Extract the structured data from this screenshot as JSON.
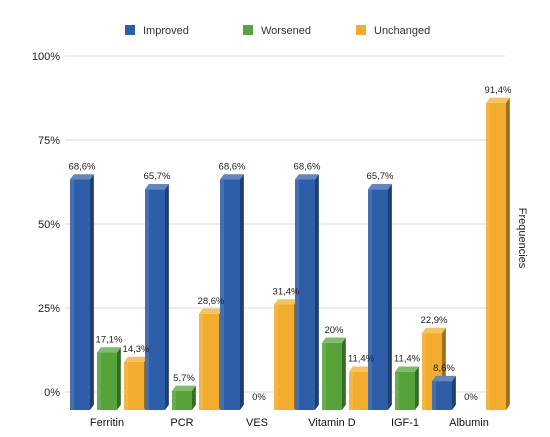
{
  "chart_data": {
    "type": "bar",
    "title": "",
    "xlabel": "",
    "ylabel": "Frequencies",
    "ylim": [
      0,
      100
    ],
    "yticks": [
      "0%",
      "25%",
      "50%",
      "75%",
      "100%"
    ],
    "ytick_values": [
      0,
      25,
      50,
      75,
      100
    ],
    "grid": true,
    "legend_position": "top",
    "categories": [
      "Ferritin",
      "PCR",
      "VES",
      "Vitamin D",
      "IGF-1",
      "Albumin"
    ],
    "series": [
      {
        "name": "Improved",
        "color": "#2f5ea8",
        "values": [
          68.6,
          65.7,
          68.6,
          68.6,
          65.7,
          8.6
        ],
        "labels": [
          "68,6%",
          "65,7%",
          "68,6%",
          "68,6%",
          "65,7%",
          "8,6%"
        ]
      },
      {
        "name": "Worsened",
        "color": "#55a33a",
        "values": [
          17.1,
          5.7,
          0,
          20,
          11.4,
          0
        ],
        "labels": [
          "17,1%",
          "5,7%",
          "0%",
          "20%",
          "11,4%",
          "0%"
        ]
      },
      {
        "name": "Unchanged",
        "color": "#f2ad2e",
        "values": [
          14.3,
          28.6,
          31.4,
          11.4,
          22.9,
          91.4
        ],
        "labels": [
          "14,3%",
          "28,6%",
          "31,4%",
          "11,4%",
          "22,9%",
          "91,4%"
        ]
      }
    ]
  }
}
